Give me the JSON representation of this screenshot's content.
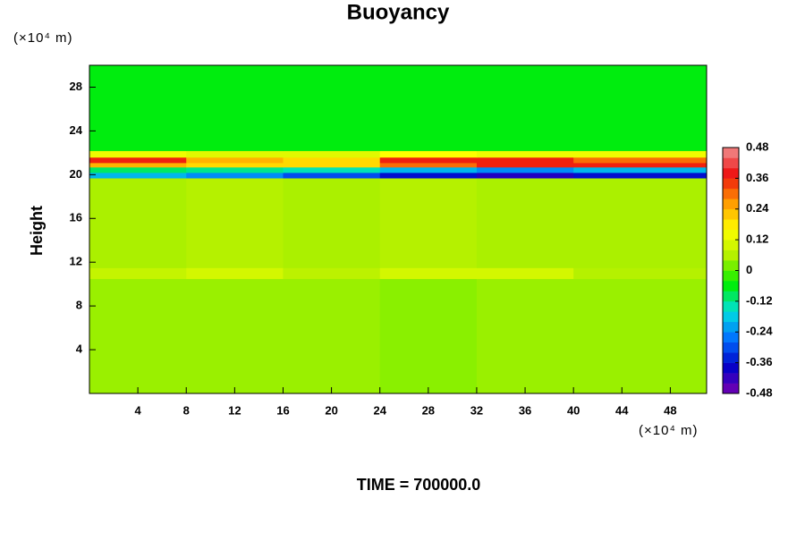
{
  "chart_data": {
    "type": "heatmap",
    "title": "Buoyancy",
    "y_label": "Height",
    "y_unit": "(×10⁴ m)",
    "x_unit": "(×10⁴ m)",
    "footer": "TIME = 700000.0",
    "xlim": [
      0,
      51
    ],
    "ylim": [
      0,
      30
    ],
    "xticks": [
      4,
      8,
      12,
      16,
      20,
      24,
      28,
      32,
      36,
      40,
      44,
      48
    ],
    "yticks": [
      4,
      8,
      12,
      16,
      20,
      24,
      28
    ],
    "xbins": [
      0,
      8,
      16,
      24,
      32,
      40,
      51
    ],
    "ybins": [
      0,
      10.5,
      11.5,
      19.7,
      20.2,
      20.7,
      21.1,
      21.6,
      22.2,
      30
    ],
    "values": [
      [
        0.04,
        0.04,
        0.04,
        0.03,
        0.04,
        0.04
      ],
      [
        0.08,
        0.1,
        0.07,
        0.1,
        0.1,
        0.06
      ],
      [
        0.05,
        0.06,
        0.05,
        0.06,
        0.05,
        0.05
      ],
      [
        -0.2,
        -0.24,
        -0.3,
        -0.36,
        -0.4,
        -0.36
      ],
      [
        -0.1,
        -0.12,
        -0.14,
        -0.2,
        -0.24,
        -0.2
      ],
      [
        0.24,
        0.2,
        0.2,
        0.3,
        0.36,
        0.36
      ],
      [
        0.36,
        0.24,
        0.2,
        0.36,
        0.36,
        0.3
      ],
      [
        0.14,
        0.12,
        0.12,
        0.16,
        0.14,
        0.14
      ],
      [
        -0.06,
        -0.06,
        -0.06,
        -0.06,
        -0.06,
        -0.06
      ]
    ],
    "clim": [
      -0.48,
      0.48
    ],
    "cticks": [
      -0.48,
      -0.36,
      -0.24,
      -0.12,
      0,
      0.12,
      0.24,
      0.36,
      0.48
    ],
    "colormap": [
      "#7a00b0",
      "#0000c8",
      "#0070ff",
      "#00e0e0",
      "#00ee00",
      "#b0f000",
      "#ffff00",
      "#ff9900",
      "#ee1010",
      "#f09090"
    ]
  }
}
